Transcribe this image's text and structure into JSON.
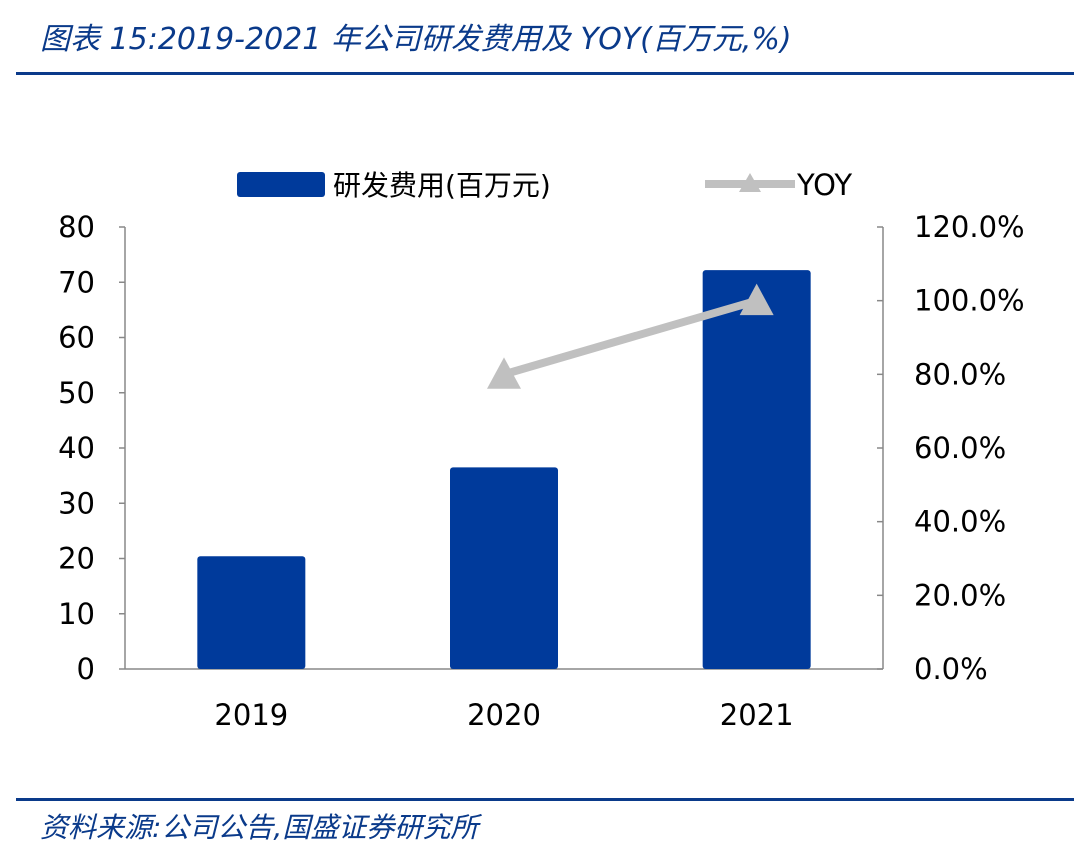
{
  "header": {
    "title": "图表 15:2019-2021 年公司研发费用及 YOY(百万元,%)"
  },
  "footer": {
    "source": "资料来源:公司公告,国盛证券研究所"
  },
  "chart_data": {
    "type": "bar",
    "categories": [
      "2019",
      "2020",
      "2021"
    ],
    "series": [
      {
        "name": "研发费用(百万元)",
        "type": "bar",
        "axis": "left",
        "values": [
          20.4,
          36.5,
          72.2
        ],
        "color": "#003a9b"
      },
      {
        "name": "YOY",
        "type": "line",
        "axis": "right",
        "values": [
          null,
          80.0,
          100.0
        ],
        "unit": "%",
        "color": "#c0c0c0"
      }
    ],
    "left_axis": {
      "ylim": [
        0,
        80
      ],
      "ticks": [
        "0",
        "10",
        "20",
        "30",
        "40",
        "50",
        "60",
        "70",
        "80"
      ]
    },
    "right_axis": {
      "ylim": [
        0,
        120
      ],
      "ticks": [
        "0.0%",
        "20.0%",
        "40.0%",
        "60.0%",
        "80.0%",
        "100.0%",
        "120.0%"
      ]
    },
    "legend": {
      "position": "top",
      "entries": [
        "研发费用(百万元)",
        "YOY"
      ]
    },
    "grid": false
  }
}
